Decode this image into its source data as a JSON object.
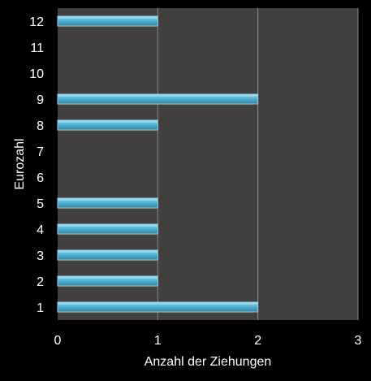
{
  "chart_data": {
    "type": "bar",
    "orientation": "horizontal",
    "categories": [
      "1",
      "2",
      "3",
      "4",
      "5",
      "6",
      "7",
      "8",
      "9",
      "10",
      "11",
      "12"
    ],
    "series": [
      {
        "values": [
          2,
          1,
          1,
          1,
          1,
          0,
          0,
          1,
          2,
          0,
          0,
          1
        ]
      }
    ],
    "xlabel": "Anzahl der Ziehungen",
    "ylabel": "Eurozahl",
    "xlim": [
      0,
      3
    ],
    "xticks": [
      "0",
      "1",
      "2",
      "3"
    ],
    "grid": "vertical",
    "legend": "none",
    "colors": {
      "page_background": "#000000",
      "plot_background": "#404040",
      "gridline": "#8c8c8c",
      "bar_fill": "#5bbad8",
      "bar_highlight": "#bfe8f6",
      "bar_shadow": "#2f7fa0",
      "bar_edge": "#8fd3ea",
      "text": "#ffffff"
    }
  }
}
